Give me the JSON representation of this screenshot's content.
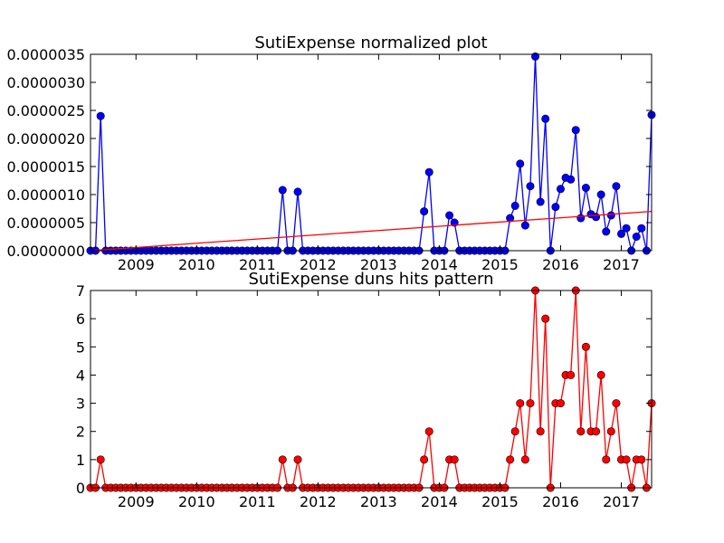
{
  "chart_data": [
    {
      "type": "line",
      "title": "SutiExpense normalized plot",
      "xlabel": "",
      "ylabel": "",
      "xlim": [
        2008.25,
        2017.5
      ],
      "ylim": [
        0,
        3.5e-06
      ],
      "yticks": [
        "0.0000000",
        "0.0000005",
        "0.0000010",
        "0.0000015",
        "0.0000020",
        "0.0000025",
        "0.0000030",
        "0.0000035"
      ],
      "xticks": [
        "2009",
        "2010",
        "2011",
        "2012",
        "2013",
        "2014",
        "2015",
        "2016",
        "2017"
      ],
      "grid": false,
      "series": [
        {
          "color": "#0000ff",
          "marker": "circle",
          "points": [
            [
              2008.25,
              0
            ],
            [
              2008.333,
              0
            ],
            [
              2008.417,
              2.4e-06
            ],
            [
              2008.5,
              0
            ],
            [
              2008.583,
              0
            ],
            [
              2008.667,
              0
            ],
            [
              2008.75,
              0
            ],
            [
              2008.833,
              0
            ],
            [
              2008.917,
              0
            ],
            [
              2009.0,
              0
            ],
            [
              2009.083,
              0
            ],
            [
              2009.167,
              0
            ],
            [
              2009.25,
              0
            ],
            [
              2009.333,
              0
            ],
            [
              2009.417,
              0
            ],
            [
              2009.5,
              0
            ],
            [
              2009.583,
              0
            ],
            [
              2009.667,
              0
            ],
            [
              2009.75,
              0
            ],
            [
              2009.833,
              0
            ],
            [
              2009.917,
              0
            ],
            [
              2010.0,
              0
            ],
            [
              2010.083,
              0
            ],
            [
              2010.167,
              0
            ],
            [
              2010.25,
              0
            ],
            [
              2010.333,
              0
            ],
            [
              2010.417,
              0
            ],
            [
              2010.5,
              0
            ],
            [
              2010.583,
              0
            ],
            [
              2010.667,
              0
            ],
            [
              2010.75,
              0
            ],
            [
              2010.833,
              0
            ],
            [
              2010.917,
              0
            ],
            [
              2011.0,
              0
            ],
            [
              2011.083,
              0
            ],
            [
              2011.167,
              0
            ],
            [
              2011.25,
              0
            ],
            [
              2011.333,
              0
            ],
            [
              2011.417,
              1.08e-06
            ],
            [
              2011.5,
              0
            ],
            [
              2011.583,
              0
            ],
            [
              2011.667,
              1.05e-06
            ],
            [
              2011.75,
              0
            ],
            [
              2011.833,
              0
            ],
            [
              2011.917,
              0
            ],
            [
              2012.0,
              0
            ],
            [
              2012.083,
              0
            ],
            [
              2012.167,
              0
            ],
            [
              2012.25,
              0
            ],
            [
              2012.333,
              0
            ],
            [
              2012.417,
              0
            ],
            [
              2012.5,
              0
            ],
            [
              2012.583,
              0
            ],
            [
              2012.667,
              0
            ],
            [
              2012.75,
              0
            ],
            [
              2012.833,
              0
            ],
            [
              2012.917,
              0
            ],
            [
              2013.0,
              0
            ],
            [
              2013.083,
              0
            ],
            [
              2013.167,
              0
            ],
            [
              2013.25,
              0
            ],
            [
              2013.333,
              0
            ],
            [
              2013.417,
              0
            ],
            [
              2013.5,
              0
            ],
            [
              2013.583,
              0
            ],
            [
              2013.667,
              0
            ],
            [
              2013.75,
              7e-07
            ],
            [
              2013.833,
              1.4e-06
            ],
            [
              2013.917,
              0
            ],
            [
              2014.0,
              0
            ],
            [
              2014.083,
              0
            ],
            [
              2014.167,
              6.3e-07
            ],
            [
              2014.25,
              5e-07
            ],
            [
              2014.333,
              0
            ],
            [
              2014.417,
              0
            ],
            [
              2014.5,
              0
            ],
            [
              2014.583,
              0
            ],
            [
              2014.667,
              0
            ],
            [
              2014.75,
              0
            ],
            [
              2014.833,
              0
            ],
            [
              2014.917,
              0
            ],
            [
              2015.0,
              0
            ],
            [
              2015.083,
              0
            ],
            [
              2015.167,
              5.8e-07
            ],
            [
              2015.25,
              8e-07
            ],
            [
              2015.333,
              1.55e-06
            ],
            [
              2015.417,
              4.5e-07
            ],
            [
              2015.5,
              1.15e-06
            ],
            [
              2015.583,
              3.46e-06
            ],
            [
              2015.667,
              8.7e-07
            ],
            [
              2015.75,
              2.35e-06
            ],
            [
              2015.833,
              0
            ],
            [
              2015.917,
              7.8e-07
            ],
            [
              2016.0,
              1.1e-06
            ],
            [
              2016.083,
              1.3e-06
            ],
            [
              2016.167,
              1.27e-06
            ],
            [
              2016.25,
              2.15e-06
            ],
            [
              2016.333,
              5.8e-07
            ],
            [
              2016.417,
              1.12e-06
            ],
            [
              2016.5,
              6.5e-07
            ],
            [
              2016.583,
              6e-07
            ],
            [
              2016.667,
              1e-06
            ],
            [
              2016.75,
              3.4e-07
            ],
            [
              2016.833,
              6.3e-07
            ],
            [
              2016.917,
              1.15e-06
            ],
            [
              2017.0,
              3e-07
            ],
            [
              2017.083,
              4e-07
            ],
            [
              2017.167,
              0
            ],
            [
              2017.25,
              2.5e-07
            ],
            [
              2017.333,
              4e-07
            ],
            [
              2017.417,
              0
            ],
            [
              2017.5,
              2.42e-06
            ]
          ]
        },
        {
          "color": "#ff0000",
          "marker": "none",
          "points": [
            [
              2008.25,
              0
            ],
            [
              2017.5,
              7e-07
            ]
          ]
        }
      ]
    },
    {
      "type": "line",
      "title": "SutiExpense duns hits pattern",
      "xlabel": "",
      "ylabel": "",
      "xlim": [
        2008.25,
        2017.5
      ],
      "ylim": [
        0,
        7
      ],
      "yticks": [
        "0",
        "1",
        "2",
        "3",
        "4",
        "5",
        "6",
        "7"
      ],
      "xticks": [
        "2009",
        "2010",
        "2011",
        "2012",
        "2013",
        "2014",
        "2015",
        "2016",
        "2017"
      ],
      "grid": false,
      "series": [
        {
          "color": "#ff0000",
          "marker": "circle",
          "points": [
            [
              2008.25,
              0
            ],
            [
              2008.333,
              0
            ],
            [
              2008.417,
              1
            ],
            [
              2008.5,
              0
            ],
            [
              2008.583,
              0
            ],
            [
              2008.667,
              0
            ],
            [
              2008.75,
              0
            ],
            [
              2008.833,
              0
            ],
            [
              2008.917,
              0
            ],
            [
              2009.0,
              0
            ],
            [
              2009.083,
              0
            ],
            [
              2009.167,
              0
            ],
            [
              2009.25,
              0
            ],
            [
              2009.333,
              0
            ],
            [
              2009.417,
              0
            ],
            [
              2009.5,
              0
            ],
            [
              2009.583,
              0
            ],
            [
              2009.667,
              0
            ],
            [
              2009.75,
              0
            ],
            [
              2009.833,
              0
            ],
            [
              2009.917,
              0
            ],
            [
              2010.0,
              0
            ],
            [
              2010.083,
              0
            ],
            [
              2010.167,
              0
            ],
            [
              2010.25,
              0
            ],
            [
              2010.333,
              0
            ],
            [
              2010.417,
              0
            ],
            [
              2010.5,
              0
            ],
            [
              2010.583,
              0
            ],
            [
              2010.667,
              0
            ],
            [
              2010.75,
              0
            ],
            [
              2010.833,
              0
            ],
            [
              2010.917,
              0
            ],
            [
              2011.0,
              0
            ],
            [
              2011.083,
              0
            ],
            [
              2011.167,
              0
            ],
            [
              2011.25,
              0
            ],
            [
              2011.333,
              0
            ],
            [
              2011.417,
              1
            ],
            [
              2011.5,
              0
            ],
            [
              2011.583,
              0
            ],
            [
              2011.667,
              1
            ],
            [
              2011.75,
              0
            ],
            [
              2011.833,
              0
            ],
            [
              2011.917,
              0
            ],
            [
              2012.0,
              0
            ],
            [
              2012.083,
              0
            ],
            [
              2012.167,
              0
            ],
            [
              2012.25,
              0
            ],
            [
              2012.333,
              0
            ],
            [
              2012.417,
              0
            ],
            [
              2012.5,
              0
            ],
            [
              2012.583,
              0
            ],
            [
              2012.667,
              0
            ],
            [
              2012.75,
              0
            ],
            [
              2012.833,
              0
            ],
            [
              2012.917,
              0
            ],
            [
              2013.0,
              0
            ],
            [
              2013.083,
              0
            ],
            [
              2013.167,
              0
            ],
            [
              2013.25,
              0
            ],
            [
              2013.333,
              0
            ],
            [
              2013.417,
              0
            ],
            [
              2013.5,
              0
            ],
            [
              2013.583,
              0
            ],
            [
              2013.667,
              0
            ],
            [
              2013.75,
              1
            ],
            [
              2013.833,
              2
            ],
            [
              2013.917,
              0
            ],
            [
              2014.0,
              0
            ],
            [
              2014.083,
              0
            ],
            [
              2014.167,
              1
            ],
            [
              2014.25,
              1
            ],
            [
              2014.333,
              0
            ],
            [
              2014.417,
              0
            ],
            [
              2014.5,
              0
            ],
            [
              2014.583,
              0
            ],
            [
              2014.667,
              0
            ],
            [
              2014.75,
              0
            ],
            [
              2014.833,
              0
            ],
            [
              2014.917,
              0
            ],
            [
              2015.0,
              0
            ],
            [
              2015.083,
              0
            ],
            [
              2015.167,
              1
            ],
            [
              2015.25,
              2
            ],
            [
              2015.333,
              3
            ],
            [
              2015.417,
              1
            ],
            [
              2015.5,
              3
            ],
            [
              2015.583,
              7
            ],
            [
              2015.667,
              2
            ],
            [
              2015.75,
              6
            ],
            [
              2015.833,
              0
            ],
            [
              2015.917,
              3
            ],
            [
              2016.0,
              3
            ],
            [
              2016.083,
              4
            ],
            [
              2016.167,
              4
            ],
            [
              2016.25,
              7
            ],
            [
              2016.333,
              2
            ],
            [
              2016.417,
              5
            ],
            [
              2016.5,
              2
            ],
            [
              2016.583,
              2
            ],
            [
              2016.667,
              4
            ],
            [
              2016.75,
              1
            ],
            [
              2016.833,
              2
            ],
            [
              2016.917,
              3
            ],
            [
              2017.0,
              1
            ],
            [
              2017.083,
              1
            ],
            [
              2017.167,
              0
            ],
            [
              2017.25,
              1
            ],
            [
              2017.333,
              1
            ],
            [
              2017.417,
              0
            ],
            [
              2017.5,
              3
            ]
          ]
        }
      ]
    }
  ]
}
